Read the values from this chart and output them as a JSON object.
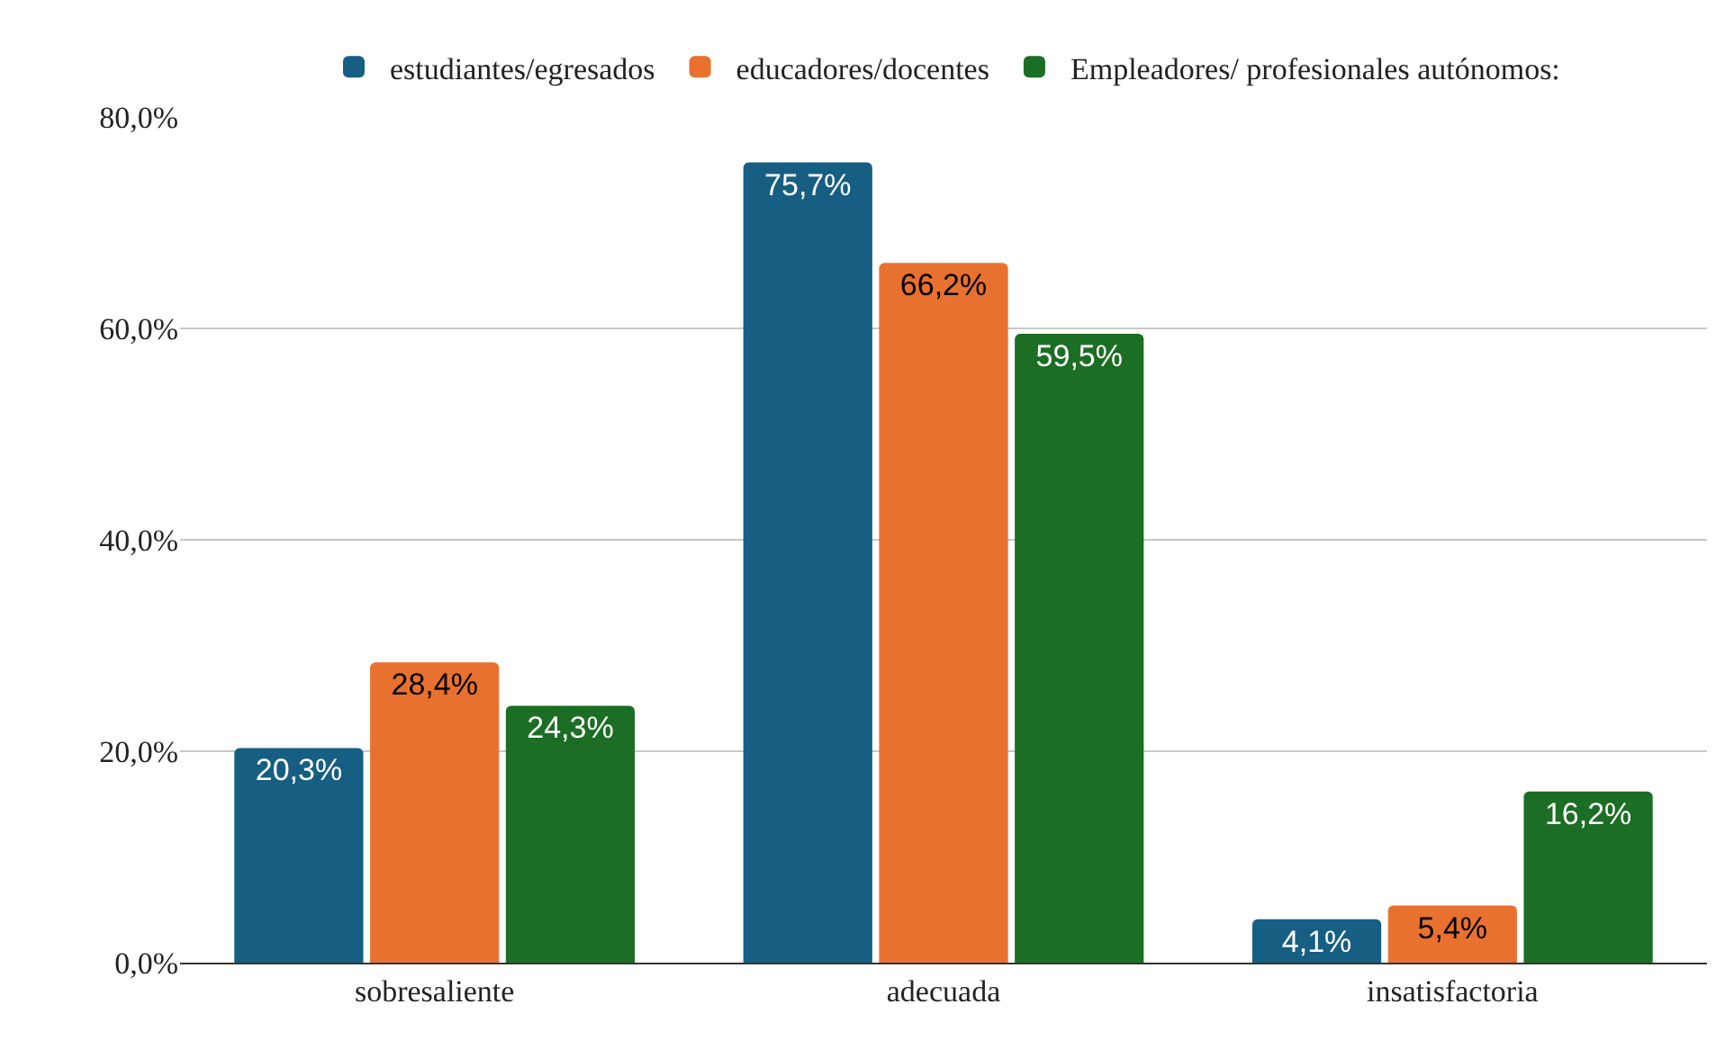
{
  "chart_data": {
    "type": "bar",
    "categories": [
      "sobresaliente",
      "adecuada",
      "insatisfactoria"
    ],
    "series": [
      {
        "name": "estudiantes/egresados",
        "color": "#165e82",
        "values": [
          20.3,
          75.7,
          4.1
        ],
        "value_labels": [
          "20,3%",
          "75,7%",
          "4,1%"
        ]
      },
      {
        "name": "educadores/docentes",
        "color": "#e8712f",
        "values": [
          28.4,
          66.2,
          5.4
        ],
        "value_labels": [
          "28,4%",
          "66,2%",
          "5,4%"
        ]
      },
      {
        "name": "Empleadores/ profesionales autónomos:",
        "color": "#1b6e24",
        "values": [
          24.3,
          59.5,
          16.2
        ],
        "value_labels": [
          "24,3%",
          "59,5%",
          "16,2%"
        ]
      }
    ],
    "ylim": [
      0,
      80
    ],
    "yticks": [
      {
        "value": 0,
        "label": "0,0%"
      },
      {
        "value": 20,
        "label": "20,0%"
      },
      {
        "value": 40,
        "label": "40,0%"
      },
      {
        "value": 60,
        "label": "60,0%"
      },
      {
        "value": 80,
        "label": "80,0%"
      }
    ],
    "grid": "y",
    "legend": "top"
  }
}
